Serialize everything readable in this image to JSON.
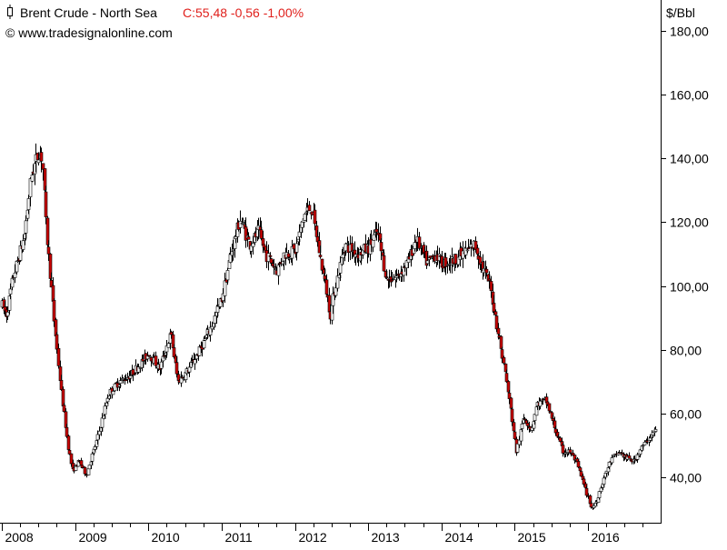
{
  "header": {
    "symbol_icon": "candle-icon",
    "instrument": "Brent Crude - North Sea",
    "quote": "C:55,48 -0,56 -1,00%",
    "copyright": "© www.tradesignalonline.com"
  },
  "colors": {
    "up_candle": "#ffffff",
    "down_candle": "#cc0000",
    "wick": "#000000",
    "quote_text": "#e0201c",
    "axis": "#000000"
  },
  "chart_data": {
    "type": "candlestick",
    "title": "Brent Crude - North Sea",
    "ylabel": "$/Bbl",
    "ylim": [
      29,
      183
    ],
    "yticks": [
      40,
      60,
      80,
      100,
      120,
      140,
      160,
      180
    ],
    "ytick_labels": [
      "40,00",
      "60,00",
      "80,00",
      "100,00",
      "120,00",
      "140,00",
      "160,00",
      "180,00"
    ],
    "x_axis": {
      "start": 2008.0,
      "end": 2016.93
    },
    "xtick_labels": [
      "2008",
      "2009",
      "2010",
      "2011",
      "2012",
      "2013",
      "2014",
      "2015",
      "2016"
    ],
    "grid": false,
    "interval": "weekly",
    "anchors": [
      {
        "t": 2008.0,
        "v": 94
      },
      {
        "t": 2008.06,
        "v": 91
      },
      {
        "t": 2008.15,
        "v": 103
      },
      {
        "t": 2008.3,
        "v": 115
      },
      {
        "t": 2008.4,
        "v": 135
      },
      {
        "t": 2008.5,
        "v": 142
      },
      {
        "t": 2008.55,
        "v": 140
      },
      {
        "t": 2008.6,
        "v": 118
      },
      {
        "t": 2008.7,
        "v": 92
      },
      {
        "t": 2008.8,
        "v": 68
      },
      {
        "t": 2008.9,
        "v": 50
      },
      {
        "t": 2008.96,
        "v": 42
      },
      {
        "t": 2009.05,
        "v": 45
      },
      {
        "t": 2009.15,
        "v": 41
      },
      {
        "t": 2009.3,
        "v": 52
      },
      {
        "t": 2009.45,
        "v": 66
      },
      {
        "t": 2009.6,
        "v": 70
      },
      {
        "t": 2009.75,
        "v": 72
      },
      {
        "t": 2009.9,
        "v": 76
      },
      {
        "t": 2010.0,
        "v": 79
      },
      {
        "t": 2010.15,
        "v": 74
      },
      {
        "t": 2010.3,
        "v": 85
      },
      {
        "t": 2010.4,
        "v": 70
      },
      {
        "t": 2010.55,
        "v": 74
      },
      {
        "t": 2010.7,
        "v": 80
      },
      {
        "t": 2010.85,
        "v": 87
      },
      {
        "t": 2011.0,
        "v": 96
      },
      {
        "t": 2011.12,
        "v": 110
      },
      {
        "t": 2011.25,
        "v": 121
      },
      {
        "t": 2011.38,
        "v": 113
      },
      {
        "t": 2011.5,
        "v": 117
      },
      {
        "t": 2011.6,
        "v": 110
      },
      {
        "t": 2011.75,
        "v": 105
      },
      {
        "t": 2011.85,
        "v": 110
      },
      {
        "t": 2012.0,
        "v": 111
      },
      {
        "t": 2012.12,
        "v": 122
      },
      {
        "t": 2012.22,
        "v": 125
      },
      {
        "t": 2012.35,
        "v": 108
      },
      {
        "t": 2012.48,
        "v": 91
      },
      {
        "t": 2012.55,
        "v": 100
      },
      {
        "t": 2012.68,
        "v": 113
      },
      {
        "t": 2012.85,
        "v": 110
      },
      {
        "t": 2013.0,
        "v": 112
      },
      {
        "t": 2013.12,
        "v": 117
      },
      {
        "t": 2013.25,
        "v": 102
      },
      {
        "t": 2013.4,
        "v": 103
      },
      {
        "t": 2013.55,
        "v": 108
      },
      {
        "t": 2013.65,
        "v": 115
      },
      {
        "t": 2013.8,
        "v": 107
      },
      {
        "t": 2013.92,
        "v": 110
      },
      {
        "t": 2014.0,
        "v": 107
      },
      {
        "t": 2014.15,
        "v": 108
      },
      {
        "t": 2014.35,
        "v": 111
      },
      {
        "t": 2014.45,
        "v": 113
      },
      {
        "t": 2014.55,
        "v": 106
      },
      {
        "t": 2014.65,
        "v": 101
      },
      {
        "t": 2014.75,
        "v": 88
      },
      {
        "t": 2014.85,
        "v": 75
      },
      {
        "t": 2014.95,
        "v": 60
      },
      {
        "t": 2015.02,
        "v": 48
      },
      {
        "t": 2015.12,
        "v": 59
      },
      {
        "t": 2015.22,
        "v": 55
      },
      {
        "t": 2015.3,
        "v": 63
      },
      {
        "t": 2015.42,
        "v": 64
      },
      {
        "t": 2015.55,
        "v": 55
      },
      {
        "t": 2015.65,
        "v": 48
      },
      {
        "t": 2015.75,
        "v": 48
      },
      {
        "t": 2015.85,
        "v": 44
      },
      {
        "t": 2015.95,
        "v": 37
      },
      {
        "t": 2016.05,
        "v": 30
      },
      {
        "t": 2016.12,
        "v": 33
      },
      {
        "t": 2016.2,
        "v": 39
      },
      {
        "t": 2016.3,
        "v": 45
      },
      {
        "t": 2016.42,
        "v": 48
      },
      {
        "t": 2016.52,
        "v": 46
      },
      {
        "t": 2016.62,
        "v": 45
      },
      {
        "t": 2016.72,
        "v": 49
      },
      {
        "t": 2016.82,
        "v": 52
      },
      {
        "t": 2016.93,
        "v": 55
      }
    ]
  }
}
